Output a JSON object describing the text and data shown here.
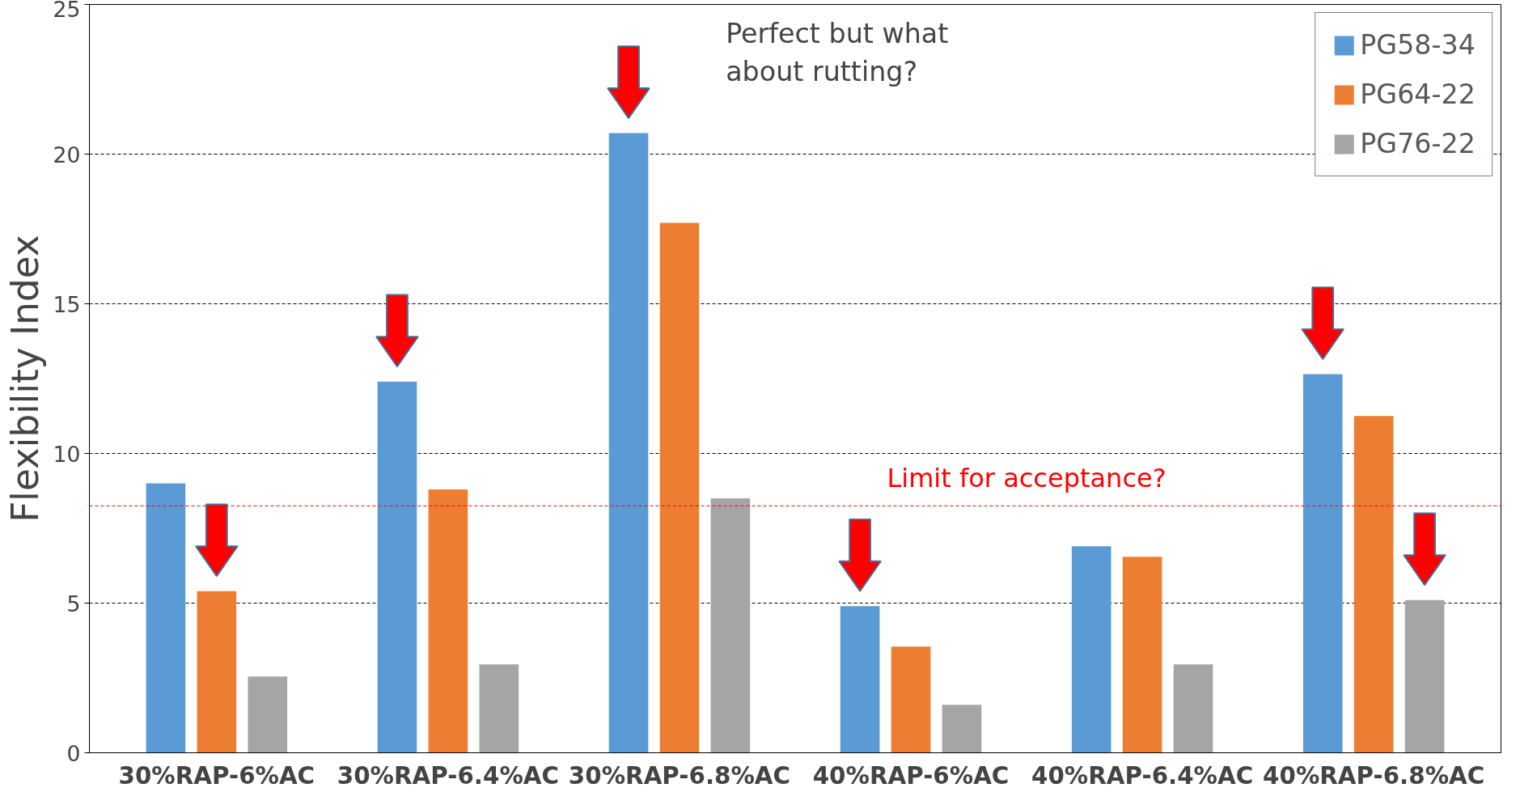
{
  "chart_data": {
    "type": "bar",
    "ylabel": "Flexibility Index",
    "categories": [
      "30%RAP-6%AC",
      "30%RAP-6.4%AC",
      "30%RAP-6.8%AC",
      "40%RAP-6%AC",
      "40%RAP-6.4%AC",
      "40%RAP-6.8%AC"
    ],
    "series": [
      {
        "name": "PG58-34",
        "color": "#5b9bd5",
        "values": [
          9.0,
          12.4,
          20.7,
          4.9,
          6.9,
          12.65
        ]
      },
      {
        "name": "PG64-22",
        "color": "#ed7d31",
        "values": [
          5.4,
          8.8,
          17.7,
          3.55,
          6.55,
          11.25
        ]
      },
      {
        "name": "PG76-22",
        "color": "#a5a5a5",
        "values": [
          2.55,
          2.95,
          8.5,
          1.6,
          2.95,
          5.1
        ]
      }
    ],
    "ylim": [
      0,
      25
    ],
    "yticks": [
      0,
      5,
      10,
      15,
      20,
      25
    ],
    "grid": "y",
    "legend": "top right",
    "ref_lines": [
      {
        "axis": "y",
        "value": 8.25,
        "label": "Limit for acceptance?",
        "color": "#ff0000",
        "line_style": "dashed"
      }
    ],
    "annotations": [
      "Perfect but what\nabout rutting?"
    ]
  }
}
